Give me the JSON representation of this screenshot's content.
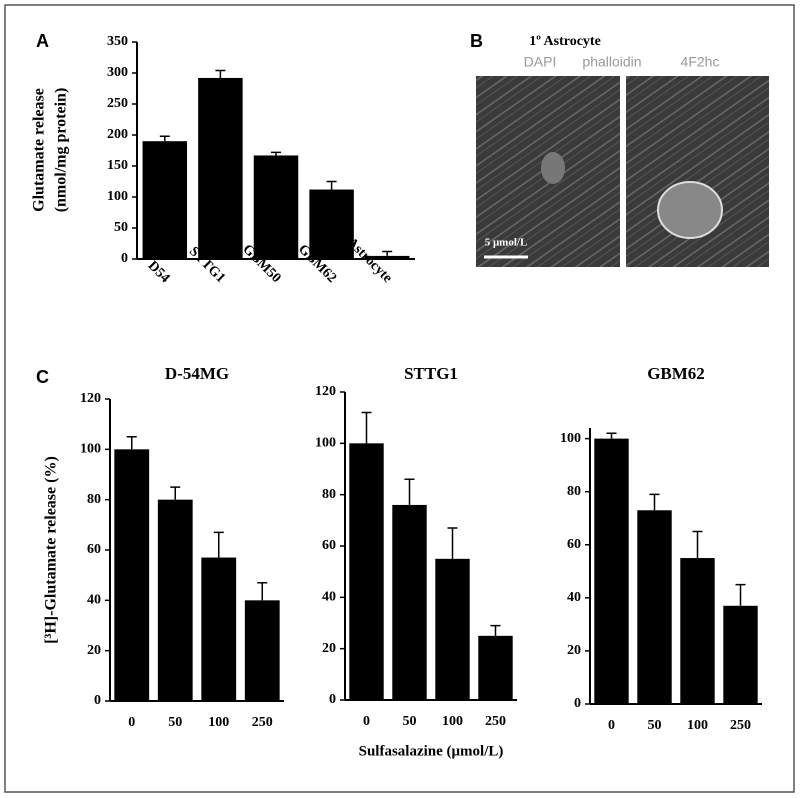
{
  "panel_labels": [
    "A",
    "B",
    "C"
  ],
  "image_panel": {
    "title": "1º Astrocyte",
    "channels": [
      "DAPI",
      "phalloidin",
      "4F2hc"
    ],
    "scale_bar": "5 μmol/L"
  },
  "chart_data": [
    {
      "type": "bar",
      "categories": [
        "D54",
        "STTG1",
        "GBM50",
        "GBM62",
        "Astrocyte"
      ],
      "values": [
        190,
        292,
        167,
        112,
        5
      ],
      "errors": [
        8,
        12,
        5,
        13,
        7
      ],
      "color": "#000000",
      "ylim": [
        0,
        350
      ],
      "yticks": [
        0,
        50,
        100,
        150,
        200,
        250,
        300,
        350
      ],
      "ylabel": [
        "Glutamate release",
        "(nmol/mg protein)"
      ]
    },
    {
      "type": "bar",
      "title": "D-54MG",
      "categories": [
        "0",
        "50",
        "100",
        "250"
      ],
      "values": [
        100,
        80,
        57,
        40
      ],
      "errors": [
        5,
        5,
        10,
        7
      ],
      "color": "#000000",
      "ylim": [
        0,
        120
      ],
      "yticks": [
        0,
        20,
        40,
        60,
        80,
        100,
        120
      ],
      "ylabel": [
        "[³H]-Glutamate release (%)"
      ]
    },
    {
      "type": "bar",
      "title": "STTG1",
      "categories": [
        "0",
        "50",
        "100",
        "250"
      ],
      "values": [
        100,
        76,
        55,
        25
      ],
      "errors": [
        12,
        10,
        12,
        4
      ],
      "color": "#000000",
      "ylim": [
        0,
        120
      ],
      "yticks": [
        0,
        20,
        40,
        60,
        80,
        100,
        120
      ],
      "xlabel": "Sulfasalazine (μmol/L)"
    },
    {
      "type": "bar",
      "title": "GBM62",
      "categories": [
        "0",
        "50",
        "100",
        "250"
      ],
      "values": [
        100,
        73,
        55,
        37
      ],
      "errors": [
        2,
        6,
        10,
        8
      ],
      "color": "#000000",
      "ylim": [
        0,
        104
      ],
      "yticks": [
        0,
        20,
        40,
        60,
        80,
        100
      ]
    }
  ]
}
